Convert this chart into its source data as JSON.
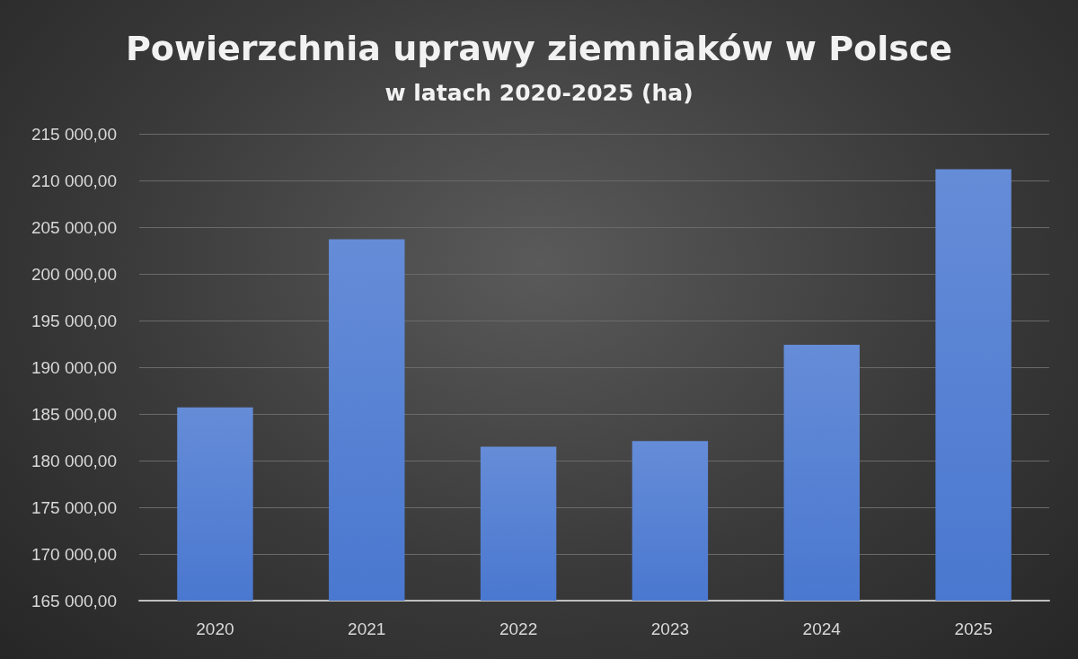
{
  "chart_data": {
    "type": "bar",
    "title": "Powierzchnia uprawy ziemniaków w Polsce",
    "subtitle": "w latach 2020-2025 (ha)",
    "categories": [
      "2020",
      "2021",
      "2022",
      "2023",
      "2024",
      "2025"
    ],
    "values": [
      185700,
      203700,
      181500,
      182100,
      192400,
      211200
    ],
    "color": "#4a78d0",
    "ylim": [
      165000,
      215000
    ],
    "yticks": [
      {
        "value": 165000,
        "label": "165 000,00"
      },
      {
        "value": 170000,
        "label": "170 000,00"
      },
      {
        "value": 175000,
        "label": "175 000,00"
      },
      {
        "value": 180000,
        "label": "180 000,00"
      },
      {
        "value": 185000,
        "label": "185 000,00"
      },
      {
        "value": 190000,
        "label": "190 000,00"
      },
      {
        "value": 195000,
        "label": "195 000,00"
      },
      {
        "value": 200000,
        "label": "200 000,00"
      },
      {
        "value": 205000,
        "label": "205 000,00"
      },
      {
        "value": 210000,
        "label": "210 000,00"
      },
      {
        "value": 215000,
        "label": "215 000,00"
      }
    ],
    "grid": "y"
  }
}
